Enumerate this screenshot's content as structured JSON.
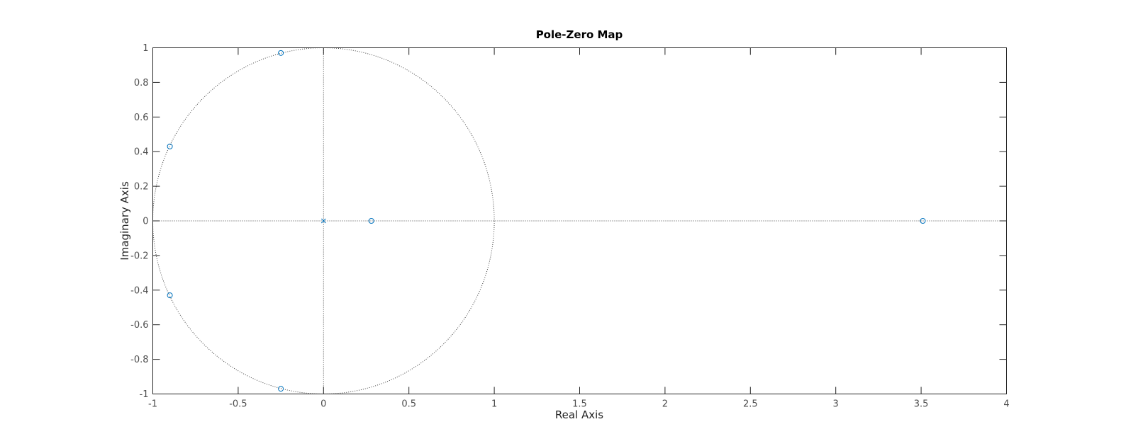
{
  "chart_data": {
    "type": "scatter",
    "title": "Pole-Zero Map",
    "xlabel": "Real Axis",
    "ylabel": "Imaginary Axis",
    "xlim": [
      -1,
      4
    ],
    "ylim": [
      -1,
      1
    ],
    "x_ticks": [
      "-1",
      "-0.5",
      "0",
      "0.5",
      "1",
      "1.5",
      "2",
      "2.5",
      "3",
      "3.5",
      "4"
    ],
    "y_ticks": [
      "1",
      "0.8",
      "0.6",
      "0.4",
      "0.2",
      "0",
      "-0.2",
      "-0.4",
      "-0.6",
      "-0.8",
      "-1"
    ],
    "grid": false,
    "unit_circle": true,
    "series": [
      {
        "marker": "o",
        "points": [
          {
            "x": -0.25,
            "y": 0.97
          },
          {
            "x": -0.25,
            "y": -0.97
          },
          {
            "x": -0.9,
            "y": 0.43
          },
          {
            "x": -0.9,
            "y": -0.43
          },
          {
            "x": 0.28,
            "y": 0
          },
          {
            "x": 3.51,
            "y": 0
          }
        ]
      },
      {
        "marker": "x",
        "points": [
          {
            "x": 0,
            "y": 0
          }
        ]
      }
    ],
    "colors": {
      "marker": "#0072bd",
      "axes": "#262626",
      "reference_lines": "#404040"
    }
  }
}
